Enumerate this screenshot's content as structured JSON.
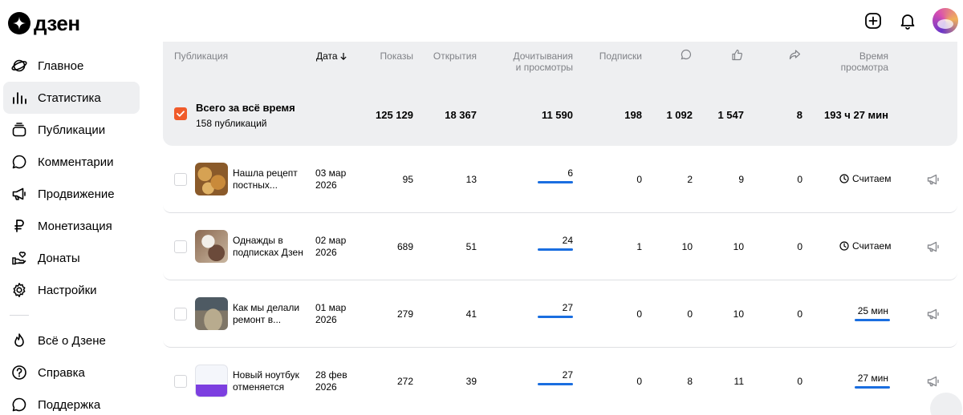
{
  "app": {
    "logo_text": "дзен"
  },
  "sidebar": {
    "items": [
      {
        "label": "Главное",
        "icon": "planet-icon"
      },
      {
        "label": "Статистика",
        "icon": "bar-chart-icon",
        "active": true
      },
      {
        "label": "Публикации",
        "icon": "stack-icon"
      },
      {
        "label": "Комментарии",
        "icon": "comment-icon"
      },
      {
        "label": "Продвижение",
        "icon": "megaphone-icon"
      },
      {
        "label": "Монетизация",
        "icon": "ruble-icon"
      },
      {
        "label": "Донаты",
        "icon": "donate-hand-icon"
      },
      {
        "label": "Настройки",
        "icon": "gear-icon"
      }
    ],
    "secondary": [
      {
        "label": "Всё о Дзене",
        "icon": "flame-icon"
      },
      {
        "label": "Справка",
        "icon": "help-icon"
      },
      {
        "label": "Поддержка",
        "icon": "support-icon"
      }
    ]
  },
  "table": {
    "headers": {
      "publication": "Публикация",
      "date": "Дата",
      "impressions": "Показы",
      "opens": "Открытия",
      "reads_1": "Дочитывания",
      "reads_2": "и просмотры",
      "subscriptions": "Подписки",
      "time_1": "Время",
      "time_2": "просмотра"
    },
    "summary": {
      "title": "Всего за всё время",
      "subtitle": "158 публикаций",
      "impressions": "125 129",
      "opens": "18 367",
      "reads": "11 590",
      "subscriptions": "198",
      "comments": "1 092",
      "likes": "1 547",
      "shares": "8",
      "time": "193 ч 27 мин"
    },
    "rows": [
      {
        "title_1": "Нашла рецепт",
        "title_2": "постных...",
        "date_1": "03 мар",
        "date_2": "2026",
        "impressions": "95",
        "opens": "13",
        "reads": "6",
        "subscriptions": "0",
        "comments": "2",
        "likes": "9",
        "shares": "0",
        "time": "Считаем"
      },
      {
        "title_1": "Однажды в",
        "title_2": "подписках Дзен",
        "date_1": "02 мар",
        "date_2": "2026",
        "impressions": "689",
        "opens": "51",
        "reads": "24",
        "subscriptions": "1",
        "comments": "10",
        "likes": "10",
        "shares": "0",
        "time": "Считаем"
      },
      {
        "title_1": "Как мы делали",
        "title_2": "ремонт в...",
        "date_1": "01 мар",
        "date_2": "2026",
        "impressions": "279",
        "opens": "41",
        "reads": "27",
        "subscriptions": "0",
        "comments": "0",
        "likes": "10",
        "shares": "0",
        "time": "25 мин"
      },
      {
        "title_1": "Новый ноутбук",
        "title_2": "отменяется",
        "date_1": "28 фев",
        "date_2": "2026",
        "impressions": "272",
        "opens": "39",
        "reads": "27",
        "subscriptions": "0",
        "comments": "8",
        "likes": "11",
        "shares": "0",
        "time": "27 мин"
      }
    ]
  },
  "colors": {
    "accent_orange": "#f05b2a",
    "bar_blue": "#1a6ee0",
    "header_gray": "#808287",
    "panel_bg": "#eeeff1"
  }
}
